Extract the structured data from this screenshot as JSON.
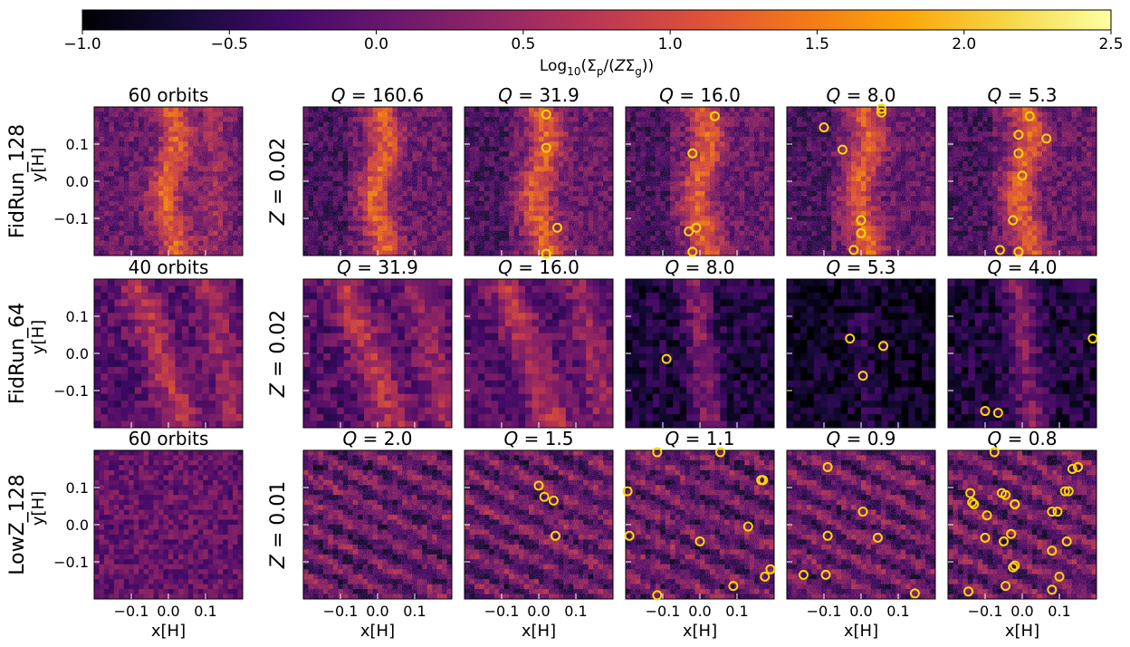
{
  "colorbar": {
    "colormap": "inferno",
    "min": -1.0,
    "max": 2.5,
    "ticks": [
      "−1.0",
      "−0.5",
      "0.0",
      "0.5",
      "1.0",
      "1.5",
      "2.0",
      "2.5"
    ],
    "label": "Log₁₀(Σₚ/(ZΣ_g))",
    "label_parts": {
      "log": "Log",
      "log_sub": "10",
      "open": "(Σ",
      "p_sub": "p",
      "mid": "/(",
      "z": "Z",
      "sigma": "Σ",
      "g_sub": "g",
      "close": "))"
    }
  },
  "xlabel": "x[H]",
  "ylabel": "y[H]",
  "x_ticks": [
    "−0.1",
    "0.0",
    "0.1"
  ],
  "y_ticks": [
    "0.1",
    "0.0",
    "−0.1"
  ],
  "rows": [
    {
      "run": "FidRun_128",
      "left_title": "60 orbits",
      "z_label": "Z = 0.02",
      "q_titles": [
        "Q = 160.6",
        "Q = 31.9",
        "Q = 16.0",
        "Q = 8.0",
        "Q = 5.3"
      ]
    },
    {
      "run": "FidRun_64",
      "left_title": "40 orbits",
      "z_label": "Z = 0.02",
      "q_titles": [
        "Q = 31.9",
        "Q = 16.0",
        "Q = 8.0",
        "Q = 5.3",
        "Q = 4.0"
      ]
    },
    {
      "run": "LowZ_128",
      "left_title": "60 orbits",
      "z_label": "Z = 0.01",
      "q_titles": [
        "Q = 2.0",
        "Q = 1.5",
        "Q = 1.1",
        "Q = 0.9",
        "Q = 0.8"
      ]
    }
  ],
  "chart_data": {
    "type": "heatmap",
    "description_fields": "panel grid of particle surface density maps; clumps marked with yellow circles",
    "x_range": [
      -0.2,
      0.2
    ],
    "y_range": [
      -0.2,
      0.2
    ],
    "clump_marker_color": "#ffd500",
    "panels": [
      {
        "row": 0,
        "col": 0,
        "style": "bands",
        "clumps": []
      },
      {
        "row": 0,
        "col": 1,
        "style": "thin",
        "clumps": []
      },
      {
        "row": 0,
        "col": 2,
        "style": "thin2",
        "clumps": [
          [
            0.02,
            0.18
          ],
          [
            0.02,
            0.09
          ],
          [
            0.05,
            -0.125
          ],
          [
            0.02,
            -0.195
          ]
        ]
      },
      {
        "row": 0,
        "col": 3,
        "style": "mixed",
        "clumps": [
          [
            0.04,
            0.175
          ],
          [
            -0.02,
            0.075
          ],
          [
            -0.02,
            0.075
          ],
          [
            -0.03,
            -0.135
          ],
          [
            -0.01,
            -0.125
          ],
          [
            -0.02,
            -0.19
          ]
        ]
      },
      {
        "row": 0,
        "col": 4,
        "style": "mixed",
        "clumps": [
          [
            -0.1,
            0.145
          ],
          [
            -0.05,
            0.085
          ],
          [
            0.0,
            -0.105
          ],
          [
            -0.02,
            -0.185
          ],
          [
            0.0,
            -0.14
          ],
          [
            0.055,
            0.195
          ],
          [
            0.055,
            0.185
          ]
        ]
      },
      {
        "row": 0,
        "col": 5,
        "style": "mixed",
        "clumps": [
          [
            0.02,
            0.175
          ],
          [
            -0.01,
            0.125
          ],
          [
            0.065,
            0.115
          ],
          [
            -0.01,
            0.075
          ],
          [
            0.0,
            0.015
          ],
          [
            -0.025,
            -0.105
          ],
          [
            -0.06,
            -0.185
          ],
          [
            -0.01,
            -0.19
          ]
        ]
      },
      {
        "row": 1,
        "col": 0,
        "style": "coarse",
        "clumps": []
      },
      {
        "row": 1,
        "col": 1,
        "style": "coarse",
        "clumps": []
      },
      {
        "row": 1,
        "col": 2,
        "style": "coarse",
        "clumps": []
      },
      {
        "row": 1,
        "col": 3,
        "style": "dark",
        "clumps": [
          [
            -0.09,
            -0.015
          ]
        ]
      },
      {
        "row": 1,
        "col": 4,
        "style": "darker",
        "clumps": [
          [
            -0.03,
            0.04
          ],
          [
            0.06,
            0.02
          ],
          [
            0.005,
            -0.06
          ]
        ]
      },
      {
        "row": 1,
        "col": 5,
        "style": "dark",
        "clumps": [
          [
            0.19,
            0.04
          ],
          [
            -0.1,
            -0.155
          ],
          [
            -0.065,
            -0.16
          ]
        ]
      },
      {
        "row": 2,
        "col": 0,
        "style": "flat",
        "clumps": []
      },
      {
        "row": 2,
        "col": 1,
        "style": "streaks",
        "clumps": []
      },
      {
        "row": 2,
        "col": 2,
        "style": "streaks",
        "clumps": [
          [
            0.0,
            0.105
          ],
          [
            0.015,
            0.075
          ],
          [
            0.04,
            0.065
          ],
          [
            0.045,
            -0.03
          ]
        ]
      },
      {
        "row": 2,
        "col": 3,
        "style": "streaks",
        "clumps": [
          [
            -0.195,
            0.09
          ],
          [
            -0.19,
            -0.03
          ],
          [
            0.0,
            -0.045
          ],
          [
            -0.115,
            -0.19
          ],
          [
            0.055,
            0.195
          ],
          [
            -0.115,
            0.195
          ],
          [
            0.165,
            0.12
          ],
          [
            0.13,
            -0.005
          ],
          [
            0.09,
            -0.165
          ],
          [
            0.175,
            -0.14
          ],
          [
            0.19,
            -0.12
          ],
          [
            0.17,
            0.12
          ]
        ]
      },
      {
        "row": 2,
        "col": 4,
        "style": "streaks",
        "clumps": [
          [
            -0.09,
            0.155
          ],
          [
            -0.09,
            -0.03
          ],
          [
            -0.095,
            -0.135
          ],
          [
            -0.155,
            -0.135
          ],
          [
            0.005,
            0.035
          ],
          [
            0.045,
            -0.035
          ],
          [
            0.145,
            -0.185
          ]
        ]
      },
      {
        "row": 2,
        "col": 5,
        "style": "streaks",
        "clumps": [
          [
            -0.075,
            0.195
          ],
          [
            -0.14,
            0.085
          ],
          [
            -0.13,
            0.055
          ],
          [
            -0.135,
            0.06
          ],
          [
            -0.095,
            0.025
          ],
          [
            -0.055,
            0.085
          ],
          [
            -0.045,
            0.08
          ],
          [
            -0.02,
            0.055
          ],
          [
            -0.02,
            0.055
          ],
          [
            -0.03,
            -0.025
          ],
          [
            -0.1,
            -0.035
          ],
          [
            -0.05,
            -0.045
          ],
          [
            -0.025,
            -0.115
          ],
          [
            -0.02,
            -0.11
          ],
          [
            0.08,
            0.035
          ],
          [
            0.095,
            0.035
          ],
          [
            0.115,
            0.09
          ],
          [
            0.125,
            0.09
          ],
          [
            0.135,
            0.15
          ],
          [
            0.15,
            0.155
          ],
          [
            0.08,
            -0.07
          ],
          [
            0.12,
            -0.045
          ],
          [
            0.1,
            -0.14
          ],
          [
            -0.045,
            -0.165
          ],
          [
            0.08,
            -0.175
          ],
          [
            -0.145,
            -0.18
          ]
        ]
      }
    ]
  }
}
